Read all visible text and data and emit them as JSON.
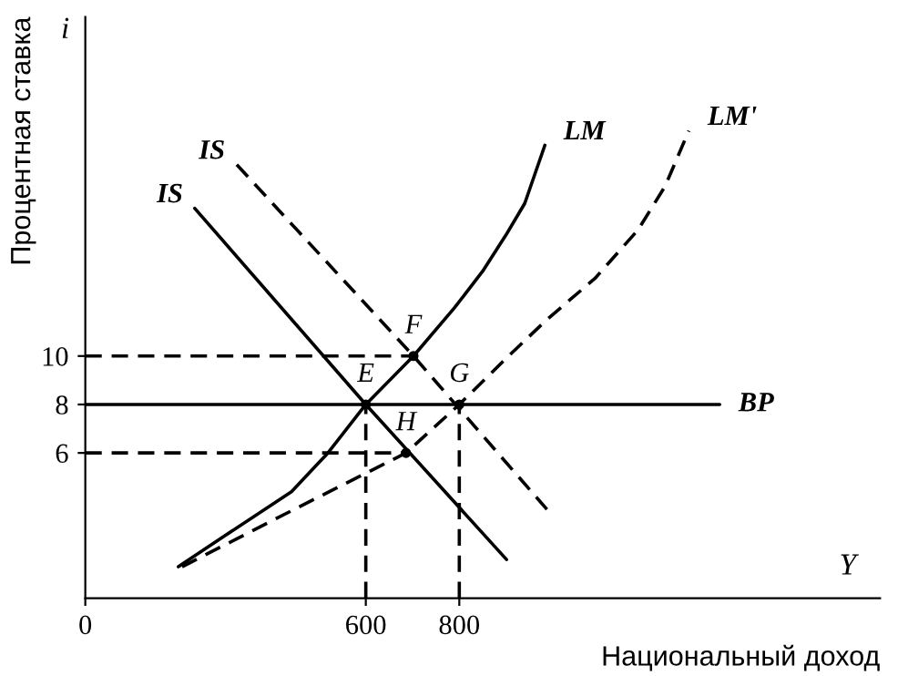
{
  "chart_data": {
    "type": "line",
    "xlabel": "Национальный доход",
    "ylabel": "Процентная ставка",
    "xlim": [
      0,
      1700
    ],
    "ylim": [
      0,
      24
    ],
    "xticks": [
      0,
      600,
      800
    ],
    "yticks": [
      6,
      8,
      10
    ],
    "grid": false,
    "legend": false,
    "marker": "none",
    "series": [
      {
        "name": "IS",
        "color": "#000000",
        "line_style": "solid",
        "x": [
          234,
          600,
          901
        ],
        "values": [
          16.1,
          8,
          1.6
        ]
      },
      {
        "name": "IS",
        "color": "#000000",
        "line_style": "dashed",
        "x": [
          324,
          702,
          995
        ],
        "values": [
          17.9,
          10,
          3.5
        ]
      },
      {
        "name": "LM",
        "color": "#000000",
        "line_style": "solid",
        "x": [
          199,
          300,
          441,
          519,
          600,
          702,
          790,
          850,
          900,
          940,
          983
        ],
        "values": [
          1.3,
          2.6,
          4.4,
          6,
          8,
          10,
          12,
          13.5,
          15,
          16.3,
          18.7
        ]
      },
      {
        "name": "LM'",
        "color": "#000000",
        "line_style": "dashed",
        "x": [
          207,
          450,
          686,
          800,
          900,
          987,
          1090,
          1182,
          1240,
          1291
        ],
        "values": [
          1.3,
          3.7,
          6,
          8,
          9.9,
          11.5,
          13.2,
          15.2,
          17,
          19.3
        ]
      },
      {
        "name": "BP",
        "color": "#000000",
        "line_style": "solid",
        "x": [
          0,
          1357
        ],
        "values": [
          8,
          8
        ]
      },
      {
        "color": "#000000",
        "line_style": "dashed",
        "x": [
          0,
          702
        ],
        "values": [
          10,
          10
        ]
      },
      {
        "color": "#000000",
        "line_style": "dashed",
        "x": [
          0,
          686
        ],
        "values": [
          6,
          6
        ]
      },
      {
        "color": "#000000",
        "line_style": "dashed",
        "x": [
          600,
          600
        ],
        "values": [
          0,
          8
        ]
      },
      {
        "color": "#000000",
        "line_style": "dashed",
        "x": [
          800,
          800
        ],
        "values": [
          0,
          8
        ]
      }
    ],
    "annotations": [
      "i",
      "Y",
      {
        "text": "E",
        "x": 600,
        "y": 8
      },
      {
        "text": "F",
        "x": 702,
        "y": 10
      },
      {
        "text": "G",
        "x": 800,
        "y": 8
      },
      {
        "text": "H",
        "x": 686,
        "y": 6
      }
    ]
  }
}
